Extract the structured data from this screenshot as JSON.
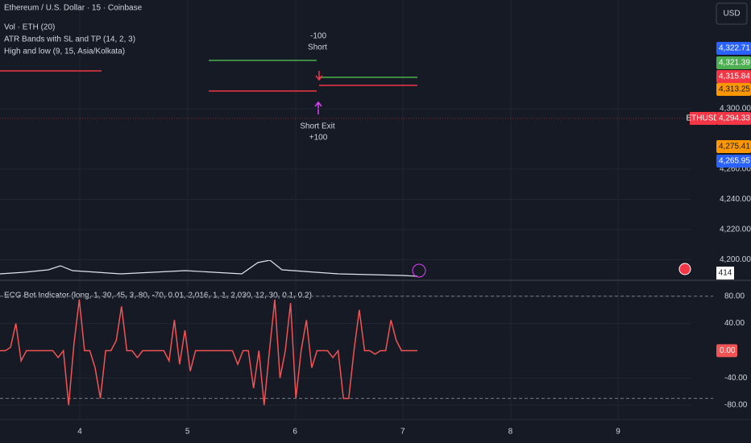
{
  "header": {
    "symbol": "Ethereum / U.S. Dollar · 15 · Coinbase",
    "indicators": [
      "Vol · ETH (20)",
      "ATR Bands with SL and TP (14, 2, 3)",
      "High and low (9, 15, Asia/Kolkata)"
    ]
  },
  "currency_button": "USD",
  "price_axis": {
    "ylim": [
      4186.4,
      4372
    ],
    "ticks": [
      {
        "value": 4300,
        "label": "4,300.00"
      },
      {
        "value": 4260,
        "label": "4,260.00"
      },
      {
        "value": 4240,
        "label": "4,240.00"
      },
      {
        "value": 4220,
        "label": "4,220.00"
      },
      {
        "value": 4200,
        "label": "4,200.00"
      }
    ],
    "tags": [
      {
        "value": 4322.71,
        "label": "4,322.71",
        "color": "#2962ff"
      },
      {
        "value": 4321.39,
        "label": "4,321.39",
        "color": "#4caf50"
      },
      {
        "value": 4315.84,
        "label": "4,315.84",
        "color": "#f23645"
      },
      {
        "value": 4313.25,
        "label": "4,313.25",
        "color": "#ff9800"
      },
      {
        "value": 4294.33,
        "label": "4,294.33",
        "color": "#f23645"
      },
      {
        "value": 4275.41,
        "label": "4,275.41",
        "color": "#ff9800"
      },
      {
        "value": 4265.95,
        "label": "4,265.95",
        "color": "#2962ff"
      }
    ],
    "symbol_tag": "ETHUSD",
    "volume_label": "414"
  },
  "signals": {
    "short_label": "-100",
    "short": "Short",
    "exit": "Short Exit",
    "exit_label": "+100"
  },
  "oscillator": {
    "title": "ECG Bot Indicator (long, 1, 30, 45, 3, 80, -70, 0.01, 2,016, 1, 1, 2,030, 12, 30, 0.1, 0.2)",
    "ylim": [
      -100,
      101
    ],
    "color": "#f05454",
    "ticks": [
      {
        "value": 80,
        "label": "80.00"
      },
      {
        "value": 40,
        "label": "40.00"
      },
      {
        "value": -40,
        "label": "-40.00"
      },
      {
        "value": -80,
        "label": "-80.00"
      }
    ],
    "levels": [
      80,
      -70
    ],
    "last": {
      "value": 0,
      "label": "0.00"
    },
    "values": [
      0,
      0,
      5,
      40,
      -15,
      0,
      0,
      0,
      0,
      0,
      0,
      -10,
      0,
      -80,
      10,
      75,
      0,
      0,
      -25,
      -70,
      0,
      0,
      15,
      65,
      0,
      0,
      -10,
      0,
      0,
      0,
      0,
      0,
      -15,
      45,
      -20,
      30,
      -30,
      0,
      0,
      0,
      0,
      0,
      0,
      0,
      0,
      -20,
      0,
      0,
      -55,
      0,
      -80,
      0,
      75,
      -40,
      0,
      70,
      -70,
      0,
      45,
      -25,
      0,
      0,
      0,
      -10,
      0,
      -70,
      -70,
      0,
      60,
      0,
      0,
      -5,
      0,
      0,
      45,
      15,
      0,
      0,
      0,
      0
    ]
  },
  "time_axis": [
    "4",
    "5",
    "6",
    "7",
    "8",
    "9"
  ]
}
